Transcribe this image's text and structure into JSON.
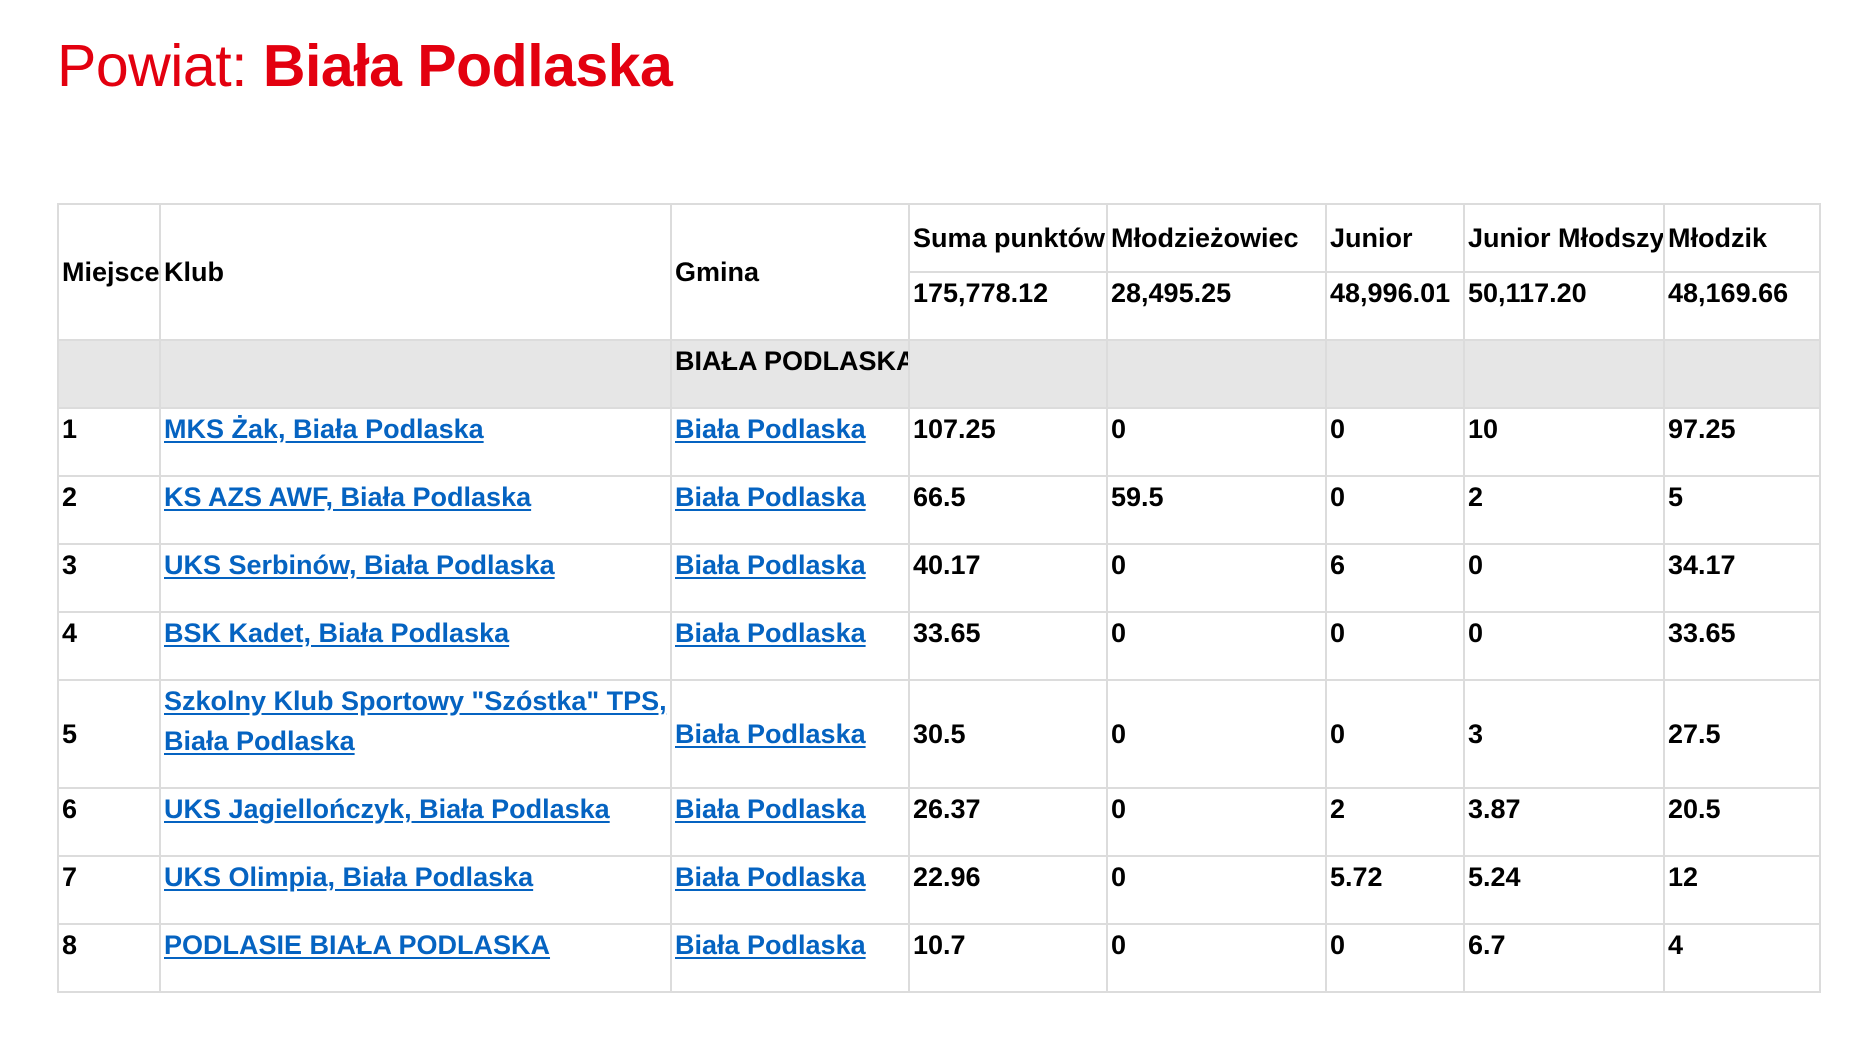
{
  "title": {
    "prefix": "Powiat: ",
    "name": "Biała Podlaska"
  },
  "headers": {
    "place": "Miejsce",
    "club": "Klub",
    "commune": "Gmina",
    "total": "Suma punktów",
    "u23": "Młodzieżowiec",
    "junior": "Junior",
    "junior_younger": "Junior Młodszy",
    "youth": "Młodzik"
  },
  "totals": {
    "total": "175,778.12",
    "u23": "28,495.25",
    "junior": "48,996.01",
    "junior_younger": "50,117.20",
    "youth": "48,169.66"
  },
  "group": {
    "label": "BIAŁA PODLASKA"
  },
  "rows": [
    {
      "place": "1",
      "club": "MKS Żak, Biała Podlaska",
      "commune": "Biała Podlaska",
      "total": "107.25",
      "u23": "0",
      "junior": "0",
      "junior_younger": "10",
      "youth": "97.25"
    },
    {
      "place": "2",
      "club": "KS AZS AWF, Biała Podlaska",
      "commune": "Biała Podlaska",
      "total": "66.5",
      "u23": "59.5",
      "junior": "0",
      "junior_younger": "2",
      "youth": "5"
    },
    {
      "place": "3",
      "club": "UKS Serbinów, Biała Podlaska",
      "commune": "Biała Podlaska",
      "total": "40.17",
      "u23": "0",
      "junior": "6",
      "junior_younger": "0",
      "youth": "34.17"
    },
    {
      "place": "4",
      "club": "BSK Kadet, Biała Podlaska",
      "commune": "Biała Podlaska",
      "total": "33.65",
      "u23": "0",
      "junior": "0",
      "junior_younger": "0",
      "youth": "33.65"
    },
    {
      "place": "5",
      "club": "Szkolny Klub Sportowy \"Szóstka\" TPS, Biała Podlaska",
      "commune": "Biała Podlaska",
      "total": "30.5",
      "u23": "0",
      "junior": "0",
      "junior_younger": "3",
      "youth": "27.5"
    },
    {
      "place": "6",
      "club": "UKS Jagiellończyk, Biała Podlaska",
      "commune": "Biała Podlaska",
      "total": "26.37",
      "u23": "0",
      "junior": "2",
      "junior_younger": "3.87",
      "youth": "20.5"
    },
    {
      "place": "7",
      "club": "UKS Olimpia, Biała Podlaska",
      "commune": "Biała Podlaska",
      "total": "22.96",
      "u23": "0",
      "junior": "5.72",
      "junior_younger": "5.24",
      "youth": "12"
    },
    {
      "place": "8",
      "club": "PODLASIE BIAŁA PODLASKA",
      "commune": "Biała Podlaska",
      "total": "10.7",
      "u23": "0",
      "junior": "0",
      "junior_younger": "6.7",
      "youth": "4"
    }
  ],
  "colors": {
    "title": "#e3000f",
    "link": "#0563c1",
    "group_background": "#e6e6e6",
    "border": "#dcdcdc"
  }
}
